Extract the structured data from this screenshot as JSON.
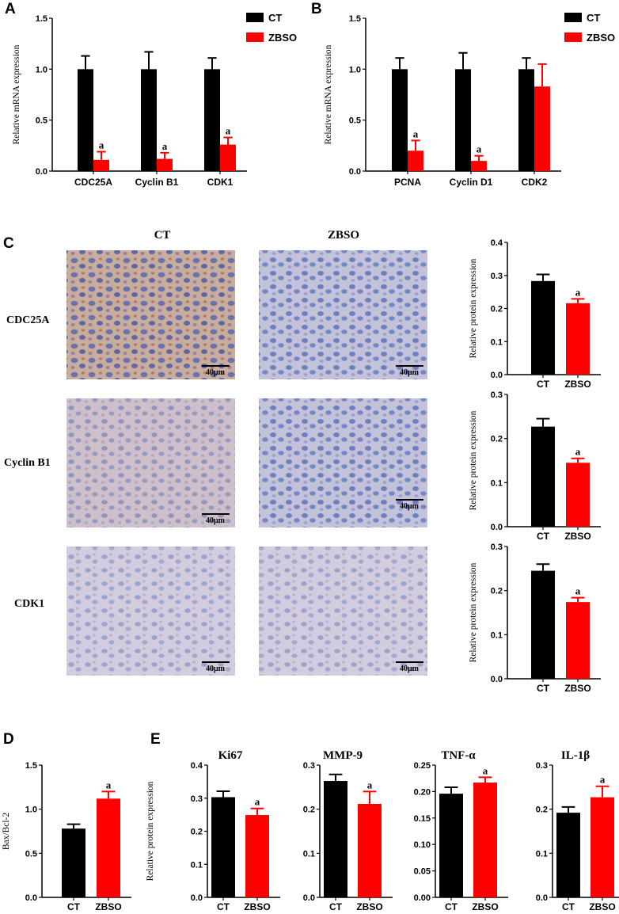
{
  "colors": {
    "ct": "#000000",
    "zbso": "#ff0000"
  },
  "panels": {
    "a": "A",
    "b": "B",
    "c": "C",
    "d": "D",
    "e": "E"
  },
  "legend": [
    "CT",
    "ZBSO"
  ],
  "significance_mark": "a",
  "micrographs": {
    "columns": [
      "CT",
      "ZBSO"
    ],
    "rows": [
      "CDC25A",
      "Cyclin B1",
      "CDK1"
    ],
    "scale_bar": "40μm"
  },
  "chart_data": [
    {
      "id": "A",
      "type": "bar",
      "categories": [
        "CDC25A",
        "Cyclin B1",
        "CDK1"
      ],
      "series": [
        {
          "name": "CT",
          "values": [
            1.0,
            1.0,
            1.0
          ],
          "errors": [
            0.13,
            0.17,
            0.11
          ]
        },
        {
          "name": "ZBSO",
          "values": [
            0.11,
            0.12,
            0.26
          ],
          "errors": [
            0.08,
            0.06,
            0.07
          ]
        }
      ],
      "sig": [
        false,
        true
      ],
      "ylabel": "Relative mRNA expression",
      "ylim": [
        0,
        1.5
      ],
      "yticks": [
        "0.0",
        "0.5",
        "1.0",
        "1.5"
      ],
      "legend": "top-right"
    },
    {
      "id": "B",
      "type": "bar",
      "categories": [
        "PCNA",
        "Cyclin D1",
        "CDK2"
      ],
      "series": [
        {
          "name": "CT",
          "values": [
            1.0,
            1.0,
            1.0
          ],
          "errors": [
            0.11,
            0.16,
            0.11
          ]
        },
        {
          "name": "ZBSO",
          "values": [
            0.2,
            0.1,
            0.83
          ],
          "errors": [
            0.1,
            0.05,
            0.22
          ]
        }
      ],
      "sig": [
        false,
        true
      ],
      "sig_cats": [
        true,
        true,
        false
      ],
      "ylabel": "Relative mRNA expression",
      "ylim": [
        0,
        1.5
      ],
      "yticks": [
        "0.0",
        "0.5",
        "1.0",
        "1.5"
      ],
      "legend": "top-right"
    },
    {
      "id": "C1",
      "type": "bar",
      "categories": [
        "CT",
        "ZBSO"
      ],
      "values": [
        0.283,
        0.216
      ],
      "errors": [
        0.02,
        0.013
      ],
      "sig": [
        false,
        true
      ],
      "ylabel": "Relative protein expression",
      "ylim": [
        0,
        0.4
      ],
      "yticks": [
        "0.0",
        "0.1",
        "0.2",
        "0.3",
        "0.4"
      ]
    },
    {
      "id": "C2",
      "type": "bar",
      "categories": [
        "CT",
        "ZBSO"
      ],
      "values": [
        0.227,
        0.145
      ],
      "errors": [
        0.018,
        0.01
      ],
      "sig": [
        false,
        true
      ],
      "ylabel": "Relative protein expression",
      "ylim": [
        0,
        0.3
      ],
      "yticks": [
        "0.0",
        "0.1",
        "0.2",
        "0.3"
      ]
    },
    {
      "id": "C3",
      "type": "bar",
      "categories": [
        "CT",
        "ZBSO"
      ],
      "values": [
        0.245,
        0.174
      ],
      "errors": [
        0.015,
        0.01
      ],
      "sig": [
        false,
        true
      ],
      "ylabel": "Relative protein expression",
      "ylim": [
        0,
        0.3
      ],
      "yticks": [
        "0.0",
        "0.1",
        "0.2",
        "0.3"
      ]
    },
    {
      "id": "D",
      "type": "bar",
      "categories": [
        "CT",
        "ZBSO"
      ],
      "values": [
        0.78,
        1.12
      ],
      "errors": [
        0.05,
        0.08
      ],
      "sig": [
        false,
        true
      ],
      "ylabel": "Bax/Bcl-2",
      "ylim": [
        0,
        1.5
      ],
      "yticks": [
        "0.0",
        "0.5",
        "1.0",
        "1.5"
      ]
    },
    {
      "id": "E1",
      "type": "bar",
      "title": "Ki67",
      "categories": [
        "CT",
        "ZBSO"
      ],
      "values": [
        0.303,
        0.249
      ],
      "errors": [
        0.018,
        0.02
      ],
      "sig": [
        false,
        true
      ],
      "ylabel": "Relative protein expression",
      "ylim": [
        0,
        0.4
      ],
      "yticks": [
        "0.0",
        "0.1",
        "0.2",
        "0.3",
        "0.4"
      ]
    },
    {
      "id": "E2",
      "type": "bar",
      "title": "MMP-9",
      "categories": [
        "CT",
        "ZBSO"
      ],
      "values": [
        0.264,
        0.212
      ],
      "errors": [
        0.015,
        0.028
      ],
      "sig": [
        false,
        true
      ],
      "ylabel": "",
      "ylim": [
        0,
        0.3
      ],
      "yticks": [
        "0.0",
        "0.1",
        "0.2",
        "0.3"
      ]
    },
    {
      "id": "E3",
      "type": "bar",
      "title": "TNF-α",
      "categories": [
        "CT",
        "ZBSO"
      ],
      "values": [
        0.196,
        0.217
      ],
      "errors": [
        0.012,
        0.01
      ],
      "sig": [
        false,
        true
      ],
      "ylabel": "",
      "ylim": [
        0,
        0.25
      ],
      "yticks": [
        "0.00",
        "0.05",
        "0.10",
        "0.15",
        "0.20",
        "0.25"
      ]
    },
    {
      "id": "E4",
      "type": "bar",
      "title": "IL-1β",
      "categories": [
        "CT",
        "ZBSO"
      ],
      "values": [
        0.192,
        0.227
      ],
      "errors": [
        0.013,
        0.025
      ],
      "sig": [
        false,
        true
      ],
      "ylabel": "",
      "ylim": [
        0,
        0.3
      ],
      "yticks": [
        "0.0",
        "0.1",
        "0.2",
        "0.3"
      ]
    }
  ]
}
